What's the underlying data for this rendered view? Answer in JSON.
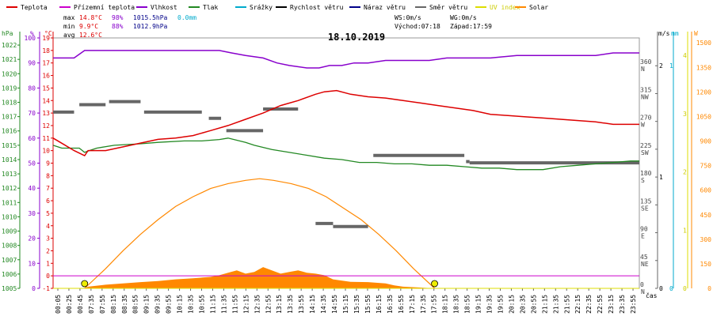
{
  "chart_data": {
    "type": "line",
    "title": "18.10.2019",
    "legend": {
      "placement": "top",
      "items": [
        {
          "label": "Teplota",
          "color": "#dd0000"
        },
        {
          "label": "Přízemní teplota",
          "color": "#cc00cc"
        },
        {
          "label": "Vlhkost",
          "color": "#8800cc"
        },
        {
          "label": "Tlak",
          "color": "#228822"
        },
        {
          "label": "Srážky",
          "color": "#00aacc"
        },
        {
          "label": "Rychlost větru",
          "color": "#000000"
        },
        {
          "label": "Náraz větru",
          "color": "#000088"
        },
        {
          "label": "Směr větru",
          "color": "#666666"
        },
        {
          "label": "UV index",
          "color": "#dddd00"
        },
        {
          "label": "Solar",
          "color": "#ff8800"
        }
      ]
    },
    "stats": {
      "max": {
        "label": "max",
        "temp": "14.8°C",
        "hum": "98%",
        "press": "1015.5hPa",
        "rain": "0.0mm"
      },
      "min": {
        "label": "min",
        "temp": "9.9°C",
        "hum": "88%",
        "press": "1012.9hPa"
      },
      "avg": {
        "label": "avg",
        "temp": "12.6°C"
      }
    },
    "wind_info": {
      "ws": "WS:0m/s",
      "wg": "WG:0m/s"
    },
    "sun_info": {
      "sunrise": "Východ:07:18",
      "sunset": "Západ:17:59"
    },
    "x_axis": {
      "label": "čas",
      "ticks": [
        "00:05",
        "00:25",
        "00:45",
        "07:35",
        "07:55",
        "08:15",
        "08:35",
        "08:55",
        "09:15",
        "09:35",
        "09:55",
        "10:15",
        "10:35",
        "10:55",
        "11:15",
        "11:35",
        "11:55",
        "12:15",
        "12:35",
        "12:55",
        "13:15",
        "13:35",
        "13:55",
        "14:15",
        "14:35",
        "14:55",
        "15:15",
        "15:35",
        "15:55",
        "16:15",
        "16:35",
        "16:55",
        "17:15",
        "17:35",
        "17:55",
        "18:15",
        "18:35",
        "18:55",
        "19:15",
        "19:35",
        "19:55",
        "20:15",
        "20:35",
        "20:55",
        "21:15",
        "21:35",
        "21:55",
        "22:15",
        "22:35",
        "22:55",
        "23:15",
        "23:35",
        "23:55"
      ]
    },
    "axes": {
      "pressure": {
        "unit": "hPa",
        "ticks": [
          1005,
          1006,
          1007,
          1008,
          1009,
          1010,
          1011,
          1012,
          1013,
          1014,
          1015,
          1016,
          1017,
          1018,
          1019,
          1020,
          1021,
          1022
        ],
        "range": [
          1005,
          1022.5
        ]
      },
      "humidity": {
        "unit": "%",
        "ticks": [
          0,
          10,
          20,
          30,
          40,
          50,
          60,
          70,
          80,
          90,
          100
        ],
        "range": [
          0,
          100
        ]
      },
      "temperature": {
        "unit": "°C",
        "ticks": [
          -1,
          0,
          1,
          2,
          3,
          4,
          5,
          6,
          7,
          8,
          9,
          10,
          11,
          12,
          13,
          14,
          15,
          16,
          17,
          18,
          19
        ],
        "range": [
          -1,
          19
        ]
      },
      "wind_dir": {
        "unit": "°",
        "ticks": [
          {
            "v": 0,
            "deg": "0",
            "dir": "N"
          },
          {
            "v": 45,
            "deg": "45",
            "dir": "NE"
          },
          {
            "v": 90,
            "deg": "90",
            "dir": "E"
          },
          {
            "v": 135,
            "deg": "135",
            "dir": "SE"
          },
          {
            "v": 180,
            "deg": "180",
            "dir": "S"
          },
          {
            "v": 225,
            "deg": "225",
            "dir": "SW"
          },
          {
            "v": 270,
            "deg": "270",
            "dir": "W"
          },
          {
            "v": 315,
            "deg": "315",
            "dir": "NW"
          },
          {
            "v": 360,
            "deg": "360",
            "dir": "N"
          }
        ],
        "range": [
          0,
          405
        ]
      },
      "wind_speed": {
        "unit": "m/s",
        "ticks": [
          0,
          1,
          2
        ],
        "range": [
          0,
          2
        ]
      },
      "rain": {
        "unit": "mm",
        "ticks": [
          0,
          1
        ],
        "range": [
          0,
          1
        ]
      },
      "uv": {
        "unit": "",
        "ticks": [
          0,
          1,
          2,
          3,
          4
        ],
        "range": [
          0,
          4.3
        ]
      },
      "solar": {
        "unit": "W",
        "ticks": [
          0,
          150,
          300,
          450,
          600,
          750,
          900,
          1050,
          1200,
          1350,
          1500
        ],
        "range": [
          0,
          1500
        ]
      }
    },
    "series": {
      "temperature": [
        [
          0,
          11
        ],
        [
          6,
          10.5
        ],
        [
          12,
          10
        ],
        [
          18,
          9.6
        ],
        [
          20,
          10
        ],
        [
          25,
          10
        ],
        [
          30,
          10
        ],
        [
          40,
          10.3
        ],
        [
          50,
          10.6
        ],
        [
          60,
          10.9
        ],
        [
          70,
          11
        ],
        [
          80,
          11.2
        ],
        [
          90,
          11.6
        ],
        [
          100,
          12
        ],
        [
          110,
          12.5
        ],
        [
          120,
          13
        ],
        [
          130,
          13.6
        ],
        [
          140,
          14
        ],
        [
          150,
          14.5
        ],
        [
          155,
          14.7
        ],
        [
          162,
          14.8
        ],
        [
          170,
          14.5
        ],
        [
          180,
          14.3
        ],
        [
          190,
          14.2
        ],
        [
          200,
          14
        ],
        [
          210,
          13.8
        ],
        [
          220,
          13.6
        ],
        [
          230,
          13.4
        ],
        [
          240,
          13.2
        ],
        [
          250,
          12.9
        ],
        [
          260,
          12.8
        ],
        [
          270,
          12.7
        ],
        [
          280,
          12.6
        ],
        [
          290,
          12.5
        ],
        [
          300,
          12.4
        ],
        [
          310,
          12.3
        ],
        [
          320,
          12.1
        ],
        [
          330,
          12.1
        ],
        [
          335,
          12.1
        ]
      ],
      "ground_temperature": [
        [
          0,
          0
        ],
        [
          335,
          0
        ]
      ],
      "humidity": [
        [
          0,
          92
        ],
        [
          12,
          92
        ],
        [
          18,
          95
        ],
        [
          25,
          95
        ],
        [
          40,
          95
        ],
        [
          55,
          95
        ],
        [
          80,
          95
        ],
        [
          95,
          95
        ],
        [
          102,
          94
        ],
        [
          110,
          93
        ],
        [
          120,
          92
        ],
        [
          128,
          90
        ],
        [
          135,
          89
        ],
        [
          145,
          88
        ],
        [
          152,
          88
        ],
        [
          158,
          89
        ],
        [
          165,
          89
        ],
        [
          172,
          90
        ],
        [
          180,
          90
        ],
        [
          190,
          91
        ],
        [
          200,
          91
        ],
        [
          215,
          91
        ],
        [
          225,
          92
        ],
        [
          240,
          92
        ],
        [
          250,
          92
        ],
        [
          265,
          93
        ],
        [
          280,
          93
        ],
        [
          295,
          93
        ],
        [
          310,
          93
        ],
        [
          320,
          94
        ],
        [
          335,
          94
        ]
      ],
      "pressure": [
        [
          0,
          1015
        ],
        [
          5,
          1014.8
        ],
        [
          12,
          1014.8
        ],
        [
          15,
          1014.8
        ],
        [
          18,
          1014.5
        ],
        [
          20,
          1014.6
        ],
        [
          25,
          1014.8
        ],
        [
          35,
          1015
        ],
        [
          50,
          1015.1
        ],
        [
          60,
          1015.2
        ],
        [
          75,
          1015.3
        ],
        [
          85,
          1015.3
        ],
        [
          95,
          1015.4
        ],
        [
          100,
          1015.5
        ],
        [
          110,
          1015.2
        ],
        [
          115,
          1015
        ],
        [
          125,
          1014.7
        ],
        [
          135,
          1014.5
        ],
        [
          145,
          1014.3
        ],
        [
          155,
          1014.1
        ],
        [
          165,
          1014
        ],
        [
          175,
          1013.8
        ],
        [
          185,
          1013.8
        ],
        [
          195,
          1013.7
        ],
        [
          205,
          1013.7
        ],
        [
          215,
          1013.6
        ],
        [
          225,
          1013.6
        ],
        [
          235,
          1013.5
        ],
        [
          245,
          1013.4
        ],
        [
          255,
          1013.4
        ],
        [
          265,
          1013.3
        ],
        [
          275,
          1013.3
        ],
        [
          280,
          1013.3
        ],
        [
          290,
          1013.5
        ],
        [
          300,
          1013.6
        ],
        [
          310,
          1013.7
        ],
        [
          320,
          1013.8
        ],
        [
          330,
          1013.9
        ],
        [
          335,
          1013.9
        ]
      ],
      "wind_direction": [
        {
          "from": 0,
          "to": 12,
          "deg": 285
        },
        {
          "from": 15,
          "to": 30,
          "deg": 297
        },
        {
          "from": 32,
          "to": 50,
          "deg": 302
        },
        {
          "from": 52,
          "to": 85,
          "deg": 285
        },
        {
          "from": 89,
          "to": 96,
          "deg": 275
        },
        {
          "from": 99,
          "to": 120,
          "deg": 255
        },
        {
          "from": 120,
          "to": 140,
          "deg": 290
        },
        {
          "from": 150,
          "to": 160,
          "deg": 105
        },
        {
          "from": 160,
          "to": 180,
          "deg": 100
        },
        {
          "from": 183,
          "to": 235,
          "deg": 215
        },
        {
          "from": 236,
          "to": 238,
          "deg": 205
        },
        {
          "from": 238,
          "to": 335,
          "deg": 203
        }
      ],
      "solar": [
        [
          0,
          0
        ],
        [
          18,
          0
        ],
        [
          20,
          10
        ],
        [
          30,
          22
        ],
        [
          40,
          30
        ],
        [
          50,
          38
        ],
        [
          60,
          45
        ],
        [
          70,
          55
        ],
        [
          80,
          62
        ],
        [
          90,
          70
        ],
        [
          95,
          80
        ],
        [
          100,
          95
        ],
        [
          105,
          110
        ],
        [
          110,
          90
        ],
        [
          115,
          100
        ],
        [
          120,
          130
        ],
        [
          125,
          110
        ],
        [
          130,
          90
        ],
        [
          135,
          100
        ],
        [
          140,
          110
        ],
        [
          145,
          95
        ],
        [
          150,
          90
        ],
        [
          155,
          80
        ],
        [
          160,
          55
        ],
        [
          170,
          40
        ],
        [
          180,
          38
        ],
        [
          190,
          30
        ],
        [
          195,
          18
        ],
        [
          200,
          10
        ],
        [
          210,
          5
        ],
        [
          218,
          0
        ],
        [
          335,
          0
        ]
      ],
      "solar_theoretical": [
        [
          18,
          0
        ],
        [
          30,
          120
        ],
        [
          40,
          230
        ],
        [
          50,
          330
        ],
        [
          60,
          420
        ],
        [
          70,
          500
        ],
        [
          80,
          560
        ],
        [
          90,
          610
        ],
        [
          100,
          640
        ],
        [
          110,
          660
        ],
        [
          118,
          670
        ],
        [
          126,
          660
        ],
        [
          136,
          640
        ],
        [
          146,
          610
        ],
        [
          156,
          560
        ],
        [
          166,
          490
        ],
        [
          176,
          420
        ],
        [
          186,
          330
        ],
        [
          196,
          230
        ],
        [
          206,
          120
        ],
        [
          218,
          0
        ]
      ],
      "uv_index": [
        [
          0,
          0
        ],
        [
          335,
          0
        ]
      ],
      "sun_markers": [
        {
          "x": 18,
          "label": "sunrise"
        },
        {
          "x": 218,
          "label": "sunset"
        }
      ]
    }
  }
}
